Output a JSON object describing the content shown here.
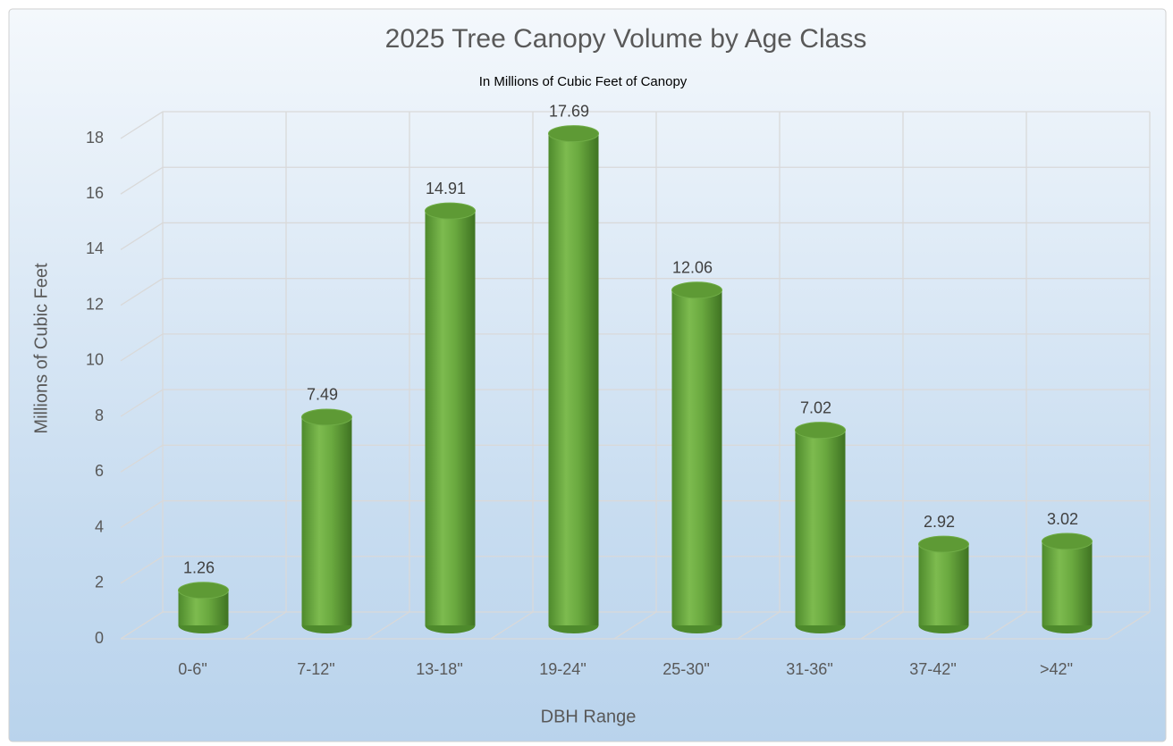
{
  "chart_data": {
    "type": "bar",
    "title": "2025 Tree Canopy Volume by Age Class",
    "subtitle": "In Millions of Cubic Feet of Canopy",
    "x_label": "DBH Range",
    "y_label": "Millions of Cubic Feet",
    "categories": [
      "0-6\"",
      "7-12\"",
      "13-18\"",
      "19-24\"",
      "25-30\"",
      "31-36\"",
      "37-42\"",
      ">42\""
    ],
    "values": [
      1.26,
      7.49,
      14.91,
      17.69,
      12.06,
      7.02,
      2.92,
      3.02
    ],
    "color": "#70ad47",
    "ylim": [
      0,
      18
    ],
    "yticks": [
      0,
      2,
      4,
      6,
      8,
      10,
      12,
      14,
      16,
      18
    ],
    "grid": true
  }
}
